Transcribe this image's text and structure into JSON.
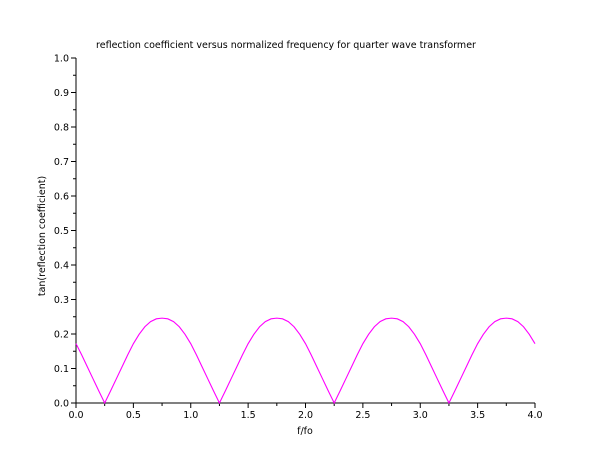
{
  "chart_data": {
    "type": "line",
    "title": "reflection coefficient versus normalized frequency for quarter wave transformer",
    "xlabel": "f/fo",
    "ylabel": "tan(reflection coefficient)",
    "xlim": [
      0.0,
      4.0
    ],
    "ylim": [
      0.0,
      1.0
    ],
    "xticks": [
      "0.0",
      "0.5",
      "1.0",
      "1.5",
      "2.0",
      "2.5",
      "3.0",
      "3.5",
      "4.0"
    ],
    "yticks": [
      "0.0",
      "0.1",
      "0.2",
      "0.3",
      "0.4",
      "0.5",
      "0.6",
      "0.7",
      "0.8",
      "0.9",
      "1.0"
    ],
    "grid": false,
    "legend": "none",
    "series": [
      {
        "color": "#ff00ff",
        "x": [
          0.0,
          0.05,
          0.1,
          0.15,
          0.2,
          0.25,
          0.3,
          0.35,
          0.4,
          0.45,
          0.5,
          0.55,
          0.6,
          0.65,
          0.7,
          0.75,
          0.8,
          0.85,
          0.9,
          0.95,
          1.0,
          1.05,
          1.1,
          1.15,
          1.2,
          1.25,
          1.3,
          1.35,
          1.4,
          1.45,
          1.5,
          1.55,
          1.6,
          1.65,
          1.7,
          1.75,
          1.8,
          1.85,
          1.9,
          1.95,
          2.0,
          2.05,
          2.1,
          2.15,
          2.2,
          2.25,
          2.3,
          2.35,
          2.4,
          2.45,
          2.5,
          2.55,
          2.6,
          2.65,
          2.7,
          2.75,
          2.8,
          2.85,
          2.9,
          2.95,
          3.0,
          3.05,
          3.1,
          3.15,
          3.2,
          3.25,
          3.3,
          3.35,
          3.4,
          3.45,
          3.5,
          3.55,
          3.6,
          3.65,
          3.7,
          3.75,
          3.8,
          3.85,
          3.9,
          3.95,
          4.0
        ],
        "y": [
          0.172,
          0.139,
          0.104,
          0.069,
          0.034,
          0.0,
          0.034,
          0.069,
          0.104,
          0.139,
          0.172,
          0.199,
          0.221,
          0.236,
          0.244,
          0.246,
          0.244,
          0.236,
          0.221,
          0.199,
          0.172,
          0.139,
          0.104,
          0.069,
          0.034,
          0.0,
          0.034,
          0.069,
          0.104,
          0.139,
          0.172,
          0.199,
          0.221,
          0.236,
          0.244,
          0.246,
          0.244,
          0.236,
          0.221,
          0.199,
          0.172,
          0.139,
          0.104,
          0.069,
          0.034,
          0.0,
          0.034,
          0.069,
          0.104,
          0.139,
          0.172,
          0.199,
          0.221,
          0.236,
          0.244,
          0.246,
          0.244,
          0.236,
          0.221,
          0.199,
          0.172,
          0.139,
          0.104,
          0.069,
          0.034,
          0.0,
          0.034,
          0.069,
          0.104,
          0.139,
          0.172,
          0.199,
          0.221,
          0.236,
          0.244,
          0.246,
          0.244,
          0.236,
          0.221,
          0.199,
          0.172
        ]
      }
    ]
  }
}
